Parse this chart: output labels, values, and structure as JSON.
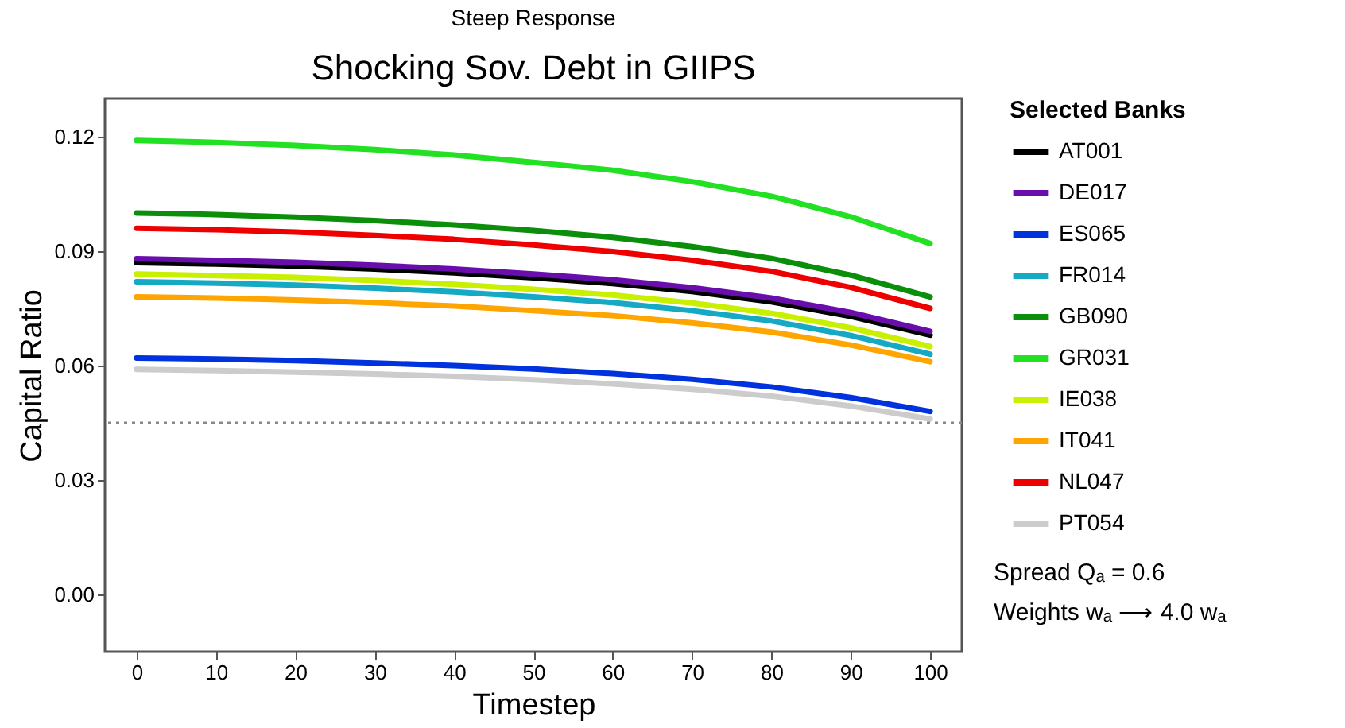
{
  "chart_data": {
    "type": "line",
    "title": "Shocking Sov. Debt in GIIPS",
    "subtitle": "Steep Response",
    "xlabel": "Timestep",
    "ylabel": "Capital Ratio",
    "legend_title": "Selected Banks",
    "legend": "right",
    "grid": false,
    "marker": "none",
    "line_style": "solid",
    "x": [
      0,
      10,
      20,
      30,
      40,
      50,
      60,
      70,
      80,
      90,
      100
    ],
    "xlim": [
      -4,
      104
    ],
    "xticks": [
      0,
      10,
      20,
      30,
      40,
      50,
      60,
      70,
      80,
      90,
      100
    ],
    "ylim": [
      -0.015,
      0.13
    ],
    "yticks": [
      {
        "value": 0,
        "label": "0.00"
      },
      0.03,
      0.06,
      0.09,
      0.12
    ],
    "series": [
      {
        "name": "AT001",
        "color": "#000000",
        "values": [
          0.087,
          0.0866,
          0.0861,
          0.0853,
          0.0843,
          0.083,
          0.0815,
          0.0794,
          0.0767,
          0.0729,
          0.068
        ]
      },
      {
        "name": "DE017",
        "color": "#6a0dad",
        "values": [
          0.088,
          0.0876,
          0.0871,
          0.0863,
          0.0853,
          0.084,
          0.0825,
          0.0804,
          0.0777,
          0.0739,
          0.069
        ]
      },
      {
        "name": "ES065",
        "color": "#0033dd",
        "values": [
          0.062,
          0.0617,
          0.0613,
          0.0607,
          0.06,
          0.0591,
          0.0579,
          0.0564,
          0.0544,
          0.0516,
          0.048
        ]
      },
      {
        "name": "FR014",
        "color": "#16a9c3",
        "values": [
          0.082,
          0.0816,
          0.0811,
          0.0803,
          0.0793,
          0.078,
          0.0765,
          0.0744,
          0.0717,
          0.0679,
          0.063
        ]
      },
      {
        "name": "GB090",
        "color": "#0b8f0b",
        "values": [
          0.1,
          0.0996,
          0.0989,
          0.098,
          0.0969,
          0.0954,
          0.0936,
          0.0912,
          0.0881,
          0.0837,
          0.078
        ]
      },
      {
        "name": "GR031",
        "color": "#22e022",
        "values": [
          0.119,
          0.1185,
          0.1177,
          0.1166,
          0.1152,
          0.1133,
          0.1112,
          0.1082,
          0.1044,
          0.099,
          0.092
        ]
      },
      {
        "name": "IE038",
        "color": "#c8f000",
        "values": [
          0.084,
          0.0836,
          0.0831,
          0.0823,
          0.0813,
          0.08,
          0.0785,
          0.0764,
          0.0737,
          0.0699,
          0.065
        ]
      },
      {
        "name": "IT041",
        "color": "#ffa500",
        "values": [
          0.078,
          0.0777,
          0.0772,
          0.0765,
          0.0756,
          0.0744,
          0.0731,
          0.0712,
          0.0688,
          0.0654,
          0.061
        ]
      },
      {
        "name": "NL047",
        "color": "#ee0000",
        "values": [
          0.096,
          0.0956,
          0.095,
          0.0941,
          0.0931,
          0.0916,
          0.0899,
          0.0876,
          0.0847,
          0.0805,
          0.075
        ]
      },
      {
        "name": "PT054",
        "color": "#cccccc",
        "values": [
          0.059,
          0.0587,
          0.0583,
          0.0578,
          0.0572,
          0.0563,
          0.0552,
          0.0538,
          0.052,
          0.0494,
          0.046
        ]
      }
    ],
    "ref_lines": [
      {
        "axis": "y",
        "value": 0.045,
        "color": "#888888",
        "line_style": "dotted"
      }
    ],
    "annotations": [
      "Spread      Qₐ = 0.6",
      "Weights     wₐ ⟶ 4.0 wₐ"
    ]
  }
}
